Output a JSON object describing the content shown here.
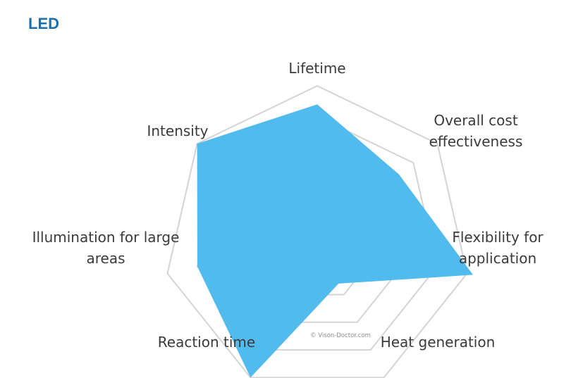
{
  "chart_data": {
    "type": "radar",
    "title": "LED",
    "categories": [
      [
        "Lifetime"
      ],
      [
        "Overall cost",
        "effectiveness"
      ],
      [
        "Flexibility for",
        "application"
      ],
      [
        "Heat generation"
      ],
      [
        "Reaction time"
      ],
      [
        "Illumination for large",
        "areas"
      ],
      [
        "Intensity"
      ]
    ],
    "series": [
      {
        "values": [
          4.4,
          3.4,
          5.2,
          1.6,
          5.0,
          4.0,
          5.0
        ]
      }
    ],
    "rlim": [
      0,
      5
    ],
    "levels": 5,
    "grid": true,
    "legend": "none"
  },
  "watermark": "© Vison-Doctor.com",
  "colors": {
    "title": "#1a6faf",
    "fill": "#52bbee",
    "grid": "#d4d4d4",
    "label": "#3a3a3a"
  }
}
